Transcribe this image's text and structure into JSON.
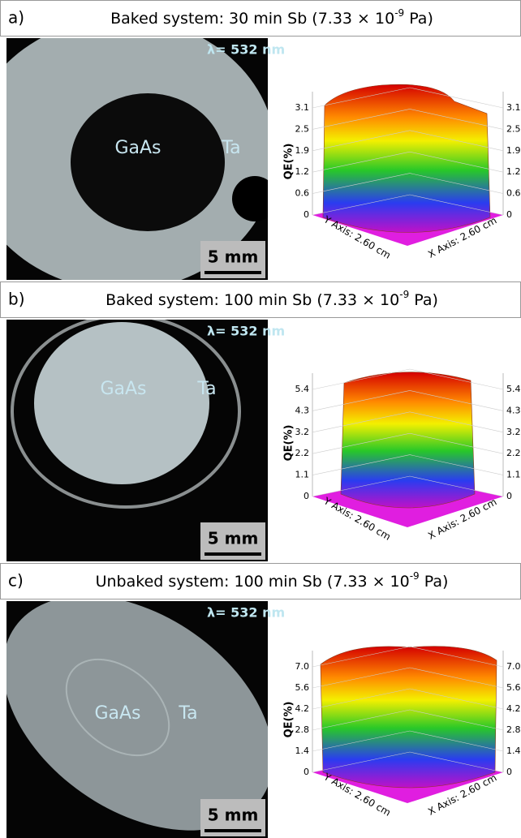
{
  "panels": [
    {
      "label": "a)",
      "title": "Baked system: 30 min Sb (7.33 × 10",
      "title_exp": "-9",
      "title_end": " Pa)",
      "wavelength": "λ= 532 nm",
      "inner_label": "GaAs",
      "outer_label": "Ta",
      "scale_bar": "5 mm",
      "plot": {
        "y_label": "QE(%)",
        "ticks": [
          "0",
          "0.6",
          "1.2",
          "1.9",
          "2.5",
          "3.1"
        ],
        "y_axis": "Y Axis: 2.60 cm",
        "x_axis": "X Axis: 2.60 cm"
      }
    },
    {
      "label": "b)",
      "title": "Baked system: 100 min Sb (7.33 × 10",
      "title_exp": "-9",
      "title_end": " Pa)",
      "wavelength": "λ= 532 nm",
      "inner_label": "GaAs",
      "outer_label": "Ta",
      "scale_bar": "5 mm",
      "plot": {
        "y_label": "QE(%)",
        "ticks": [
          "0",
          "1.1",
          "2.2",
          "3.2",
          "4.3",
          "5.4"
        ],
        "y_axis": "Y Axis: 2.60 cm",
        "x_axis": "X Axis: 2.60 cm"
      }
    },
    {
      "label": "c)",
      "title": "Unbaked system: 100 min Sb (7.33 × 10",
      "title_exp": "-9",
      "title_end": " Pa)",
      "wavelength": "λ= 532 nm",
      "inner_label": "GaAs",
      "outer_label": "Ta",
      "scale_bar": "5 mm",
      "plot": {
        "y_label": "QE(%)",
        "ticks": [
          "0",
          "1.4",
          "2.8",
          "4.2",
          "5.6",
          "7.0"
        ],
        "y_axis": "Y Axis: 2.60 cm",
        "x_axis": "X Axis: 2.60 cm"
      }
    }
  ]
}
